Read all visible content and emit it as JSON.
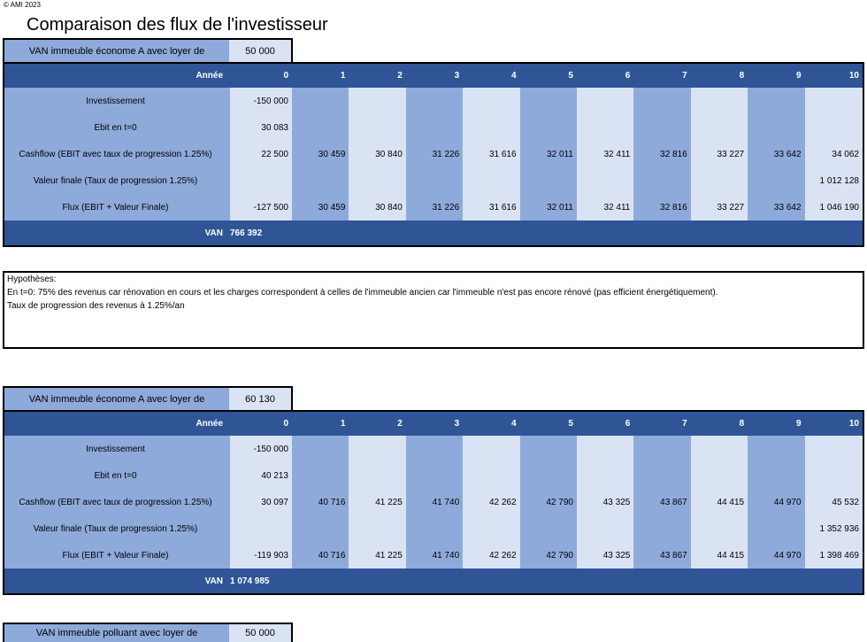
{
  "copyright": "© AMI 2023",
  "title": "Comparaison des flux de l'investisseur",
  "hypotheses": {
    "heading": "Hypothèses:",
    "line1": "En t=0: 75% des revenus car rénovation en cours et les charges correspondent à celles de l'immeuble ancien car l'immeuble n'est pas encore rénové (pas efficient énergétiquement).",
    "line2": "Taux de progression des revenus à 1.25%/an"
  },
  "tables": [
    {
      "van_label": "VAN immeuble économe A avec loyer de",
      "van_value": "50 000",
      "header_label": "Année",
      "years": [
        "0",
        "1",
        "2",
        "3",
        "4",
        "5",
        "6",
        "7",
        "8",
        "9",
        "10"
      ],
      "rows": [
        {
          "label": "Investissement",
          "values": [
            "-150 000",
            "",
            "",
            "",
            "",
            "",
            "",
            "",
            "",
            "",
            ""
          ]
        },
        {
          "label": "Ebit en t=0",
          "values": [
            "30 083",
            "",
            "",
            "",
            "",
            "",
            "",
            "",
            "",
            "",
            ""
          ]
        },
        {
          "label": "Cashflow (EBIT avec taux de progression 1.25%)",
          "values": [
            "22 500",
            "30 459",
            "30 840",
            "31 226",
            "31 616",
            "32 011",
            "32 411",
            "32 816",
            "33 227",
            "33 642",
            "34 062"
          ]
        },
        {
          "label": "Valeur finale (Taux de progression 1.25%)",
          "values": [
            "",
            "",
            "",
            "",
            "",
            "",
            "",
            "",
            "",
            "",
            "1 012 128"
          ]
        },
        {
          "label": "Flux (EBIT + Valeur Finale)",
          "values": [
            "-127 500",
            "30 459",
            "30 840",
            "31 226",
            "31 616",
            "32 011",
            "32 411",
            "32 816",
            "33 227",
            "33 642",
            "1 046 190"
          ]
        }
      ],
      "footer_label": "VAN",
      "footer_value": "766 392"
    },
    {
      "van_label": "VAN immeuble économe A avec loyer de",
      "van_value": "60 130",
      "header_label": "Année",
      "years": [
        "0",
        "1",
        "2",
        "3",
        "4",
        "5",
        "6",
        "7",
        "8",
        "9",
        "10"
      ],
      "rows": [
        {
          "label": "Investissement",
          "values": [
            "-150 000",
            "",
            "",
            "",
            "",
            "",
            "",
            "",
            "",
            "",
            ""
          ]
        },
        {
          "label": "Ebit en t=0",
          "values": [
            "40 213",
            "",
            "",
            "",
            "",
            "",
            "",
            "",
            "",
            "",
            ""
          ]
        },
        {
          "label": "Cashflow (EBIT avec taux de progression 1.25%)",
          "values": [
            "30 097",
            "40 716",
            "41 225",
            "41 740",
            "42 262",
            "42 790",
            "43 325",
            "43 867",
            "44 415",
            "44 970",
            "45 532"
          ]
        },
        {
          "label": "Valeur finale (Taux de progression 1.25%)",
          "values": [
            "",
            "",
            "",
            "",
            "",
            "",
            "",
            "",
            "",
            "",
            "1 352 936"
          ]
        },
        {
          "label": "Flux (EBIT + Valeur Finale)",
          "values": [
            "-119 903",
            "40 716",
            "41 225",
            "41 740",
            "42 262",
            "42 790",
            "43 325",
            "43 867",
            "44 415",
            "44 970",
            "1 398 469"
          ]
        }
      ],
      "footer_label": "VAN",
      "footer_value": "1 074 985"
    }
  ],
  "third_table": {
    "van_label": "VAN immeuble polluant avec loyer de",
    "van_value": "50 000"
  }
}
